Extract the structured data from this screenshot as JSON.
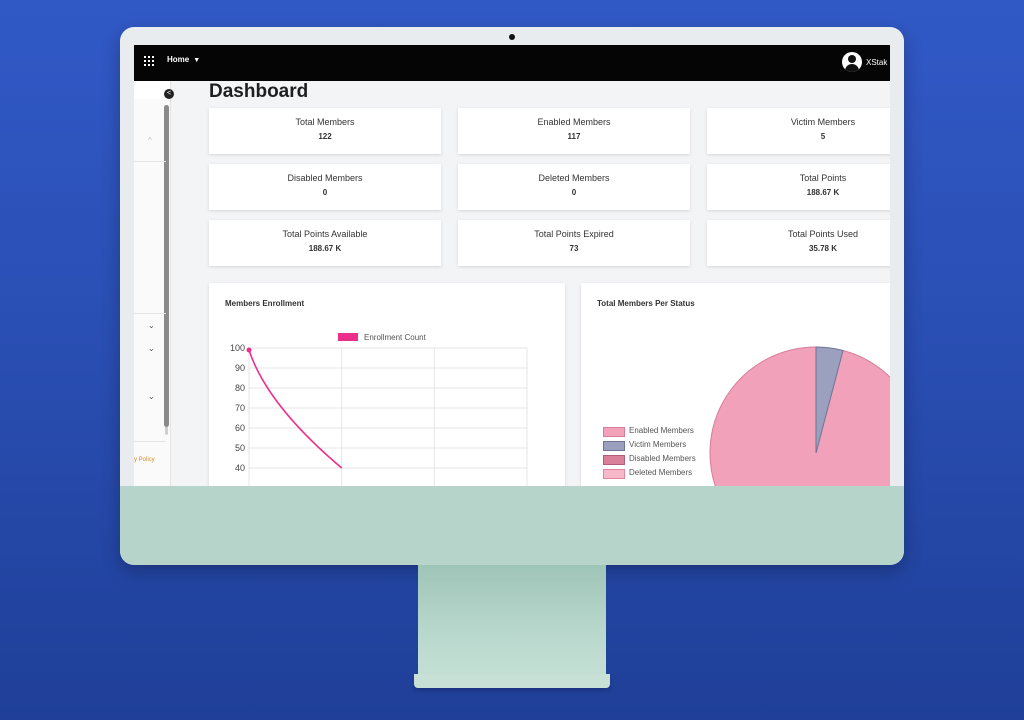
{
  "topbar": {
    "home_label": "Home",
    "user_name": "XStak"
  },
  "sidebar": {
    "footer_link": "y Policy"
  },
  "page": {
    "title": "Dashboard"
  },
  "stats": [
    {
      "label": "Total Members",
      "value": "122"
    },
    {
      "label": "Enabled Members",
      "value": "117"
    },
    {
      "label": "Victim Members",
      "value": "5"
    },
    {
      "label": "Disabled Members",
      "value": "0"
    },
    {
      "label": "Deleted Members",
      "value": "0"
    },
    {
      "label": "Total Points",
      "value": "188.67 K"
    },
    {
      "label": "Total Points Available",
      "value": "188.67 K"
    },
    {
      "label": "Total Points Expired",
      "value": "73"
    },
    {
      "label": "Total Points Used",
      "value": "35.78 K"
    }
  ],
  "enrollment_chart": {
    "title": "Members Enrollment",
    "legend": "Enrollment Count",
    "series_color": "#ec2f8c"
  },
  "status_chart": {
    "title": "Total Members Per Status",
    "legend": [
      {
        "label": "Enabled Members",
        "color": "#f2a1bb"
      },
      {
        "label": "Victim Members",
        "color": "#9aa0bd"
      },
      {
        "label": "Disabled Members",
        "color": "#d9809a"
      },
      {
        "label": "Deleted Members",
        "color": "#f7b9c9"
      }
    ]
  },
  "chart_data": [
    {
      "type": "line",
      "title": "Members Enrollment",
      "series": [
        {
          "name": "Enrollment Count",
          "values": [
            99,
            40
          ]
        }
      ],
      "x": [
        0,
        0.5
      ],
      "ylim": [
        40,
        100
      ],
      "yticks": [
        100,
        90,
        80,
        70,
        60,
        50,
        40
      ],
      "grid": true,
      "legend": "top"
    },
    {
      "type": "pie",
      "title": "Total Members Per Status",
      "categories": [
        "Enabled Members",
        "Victim Members",
        "Disabled Members",
        "Deleted Members"
      ],
      "values": [
        117,
        5,
        0,
        0
      ],
      "legend": "left"
    }
  ]
}
